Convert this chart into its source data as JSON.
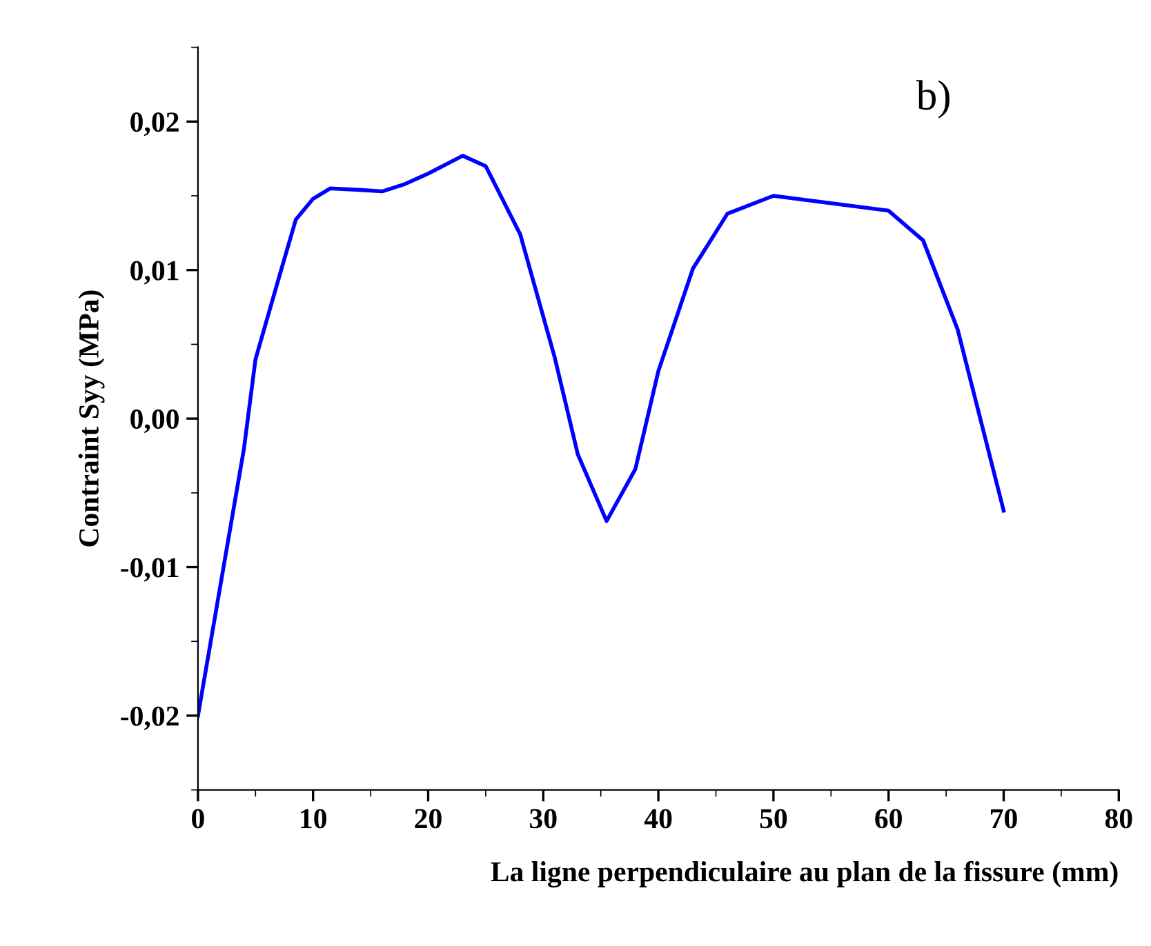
{
  "chart_data": {
    "type": "line",
    "xlabel": "La ligne perpendiculaire au plan de la fissure (mm)",
    "ylabel": "Contraint Syy (MPa)",
    "annotations": [
      "b)"
    ],
    "series": [
      {
        "color": "#0000ff",
        "x": [
          0,
          2,
          4,
          5,
          7,
          8.5,
          10,
          11.5,
          14,
          16,
          18,
          20,
          23,
          25,
          28,
          31,
          33,
          35.5,
          38,
          40,
          43,
          46,
          50,
          55,
          60,
          63,
          66,
          70
        ],
        "values": [
          -0.02,
          -0.011,
          -0.002,
          0.004,
          0.0094,
          0.0134,
          0.0148,
          0.0155,
          0.0154,
          0.0153,
          0.0158,
          0.0165,
          0.0177,
          0.017,
          0.0124,
          0.0041,
          -0.0024,
          -0.0069,
          -0.0034,
          0.0032,
          0.0101,
          0.0138,
          0.015,
          0.0145,
          0.014,
          0.012,
          0.006,
          -0.0062
        ]
      }
    ],
    "xlim": [
      0,
      80
    ],
    "xticks": [
      0,
      10,
      20,
      30,
      40,
      50,
      60,
      70,
      80
    ],
    "ylim": [
      -0.025,
      0.025
    ],
    "yticks": [
      {
        "value": -0.02,
        "label": "-0,02"
      },
      {
        "value": -0.01,
        "label": "-0,01"
      },
      {
        "value": 0,
        "label": "0,00"
      },
      {
        "value": 0.01,
        "label": "0,01"
      },
      {
        "value": 0.02,
        "label": "0,02"
      }
    ],
    "grid": false,
    "legend": false
  }
}
